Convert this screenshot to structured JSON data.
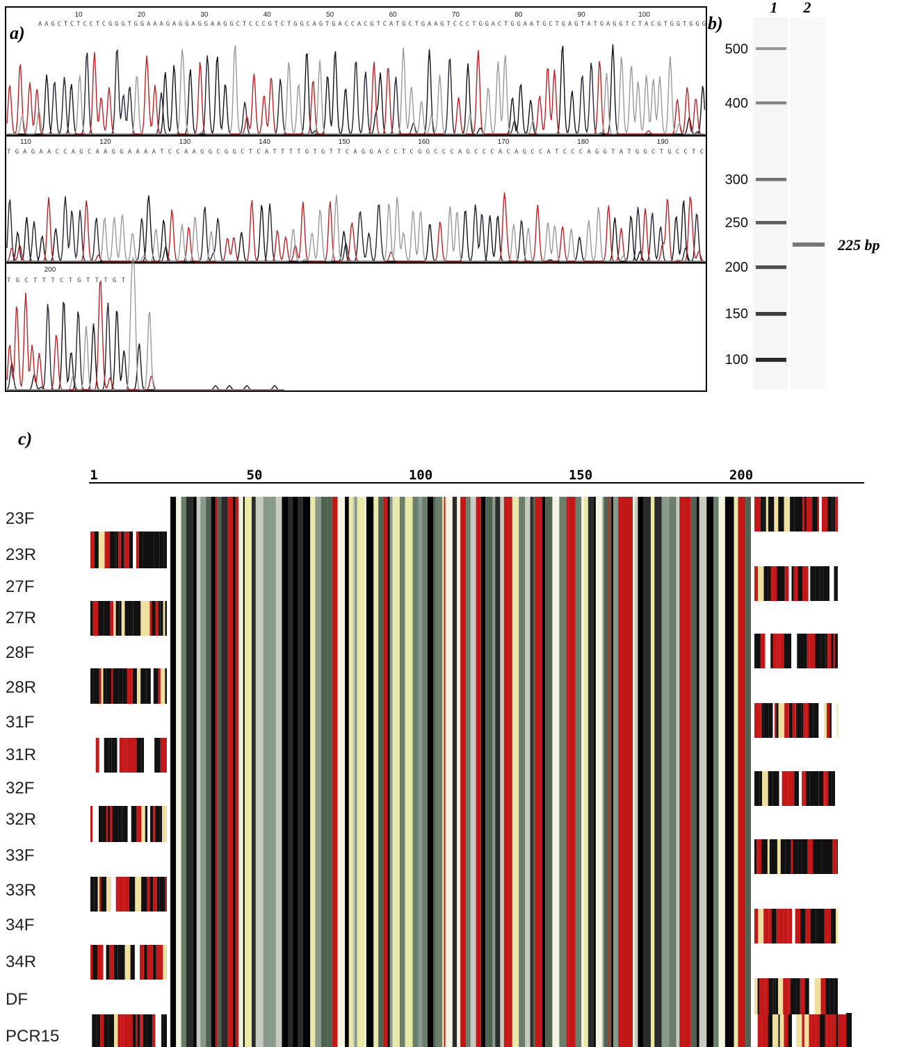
{
  "panel_a": {
    "label": "a)",
    "rows": [
      {
        "ruler": [
          "10",
          "20",
          "30",
          "40",
          "50",
          "60",
          "70",
          "80",
          "90",
          "100"
        ],
        "sequence": "AAGCTCTCCTCGGGTGGAAAGAGGAGGAAGGCTCCCGTCTGGCAGTGACCACGTCATGCTGAAGTCCCTGGACTGGAATGCTGAGTATGAGGTCTACGTGGTGGG"
      },
      {
        "ruler": [
          "110",
          "120",
          "130",
          "140",
          "150",
          "160",
          "170",
          "180",
          "190"
        ],
        "sequence": "TGAGAACCAGCAAGGAAAATCCAAGGCGGCTCATTTTGTGTTCAGGACCTCGGCCCAGCCCACAGCCATCCCAGGTATGGCTGCCTC"
      },
      {
        "ruler": [
          "200"
        ],
        "sequence": "TGCTTTCTGTTTGT"
      }
    ]
  },
  "panel_b": {
    "label": "b)",
    "lanes": [
      "1",
      "2"
    ],
    "ladder": [
      "500",
      "400",
      "300",
      "250",
      "200",
      "150",
      "100"
    ],
    "band_label": "225 bp"
  },
  "panel_c": {
    "label": "c)",
    "ruler": [
      "1",
      "50",
      "100",
      "150",
      "200"
    ],
    "samples": [
      "23F",
      "23R",
      "27F",
      "27R",
      "28F",
      "28R",
      "31F",
      "31R",
      "32F",
      "32R",
      "33F",
      "33R",
      "34F",
      "34R",
      "DF",
      "PCR15"
    ]
  }
}
